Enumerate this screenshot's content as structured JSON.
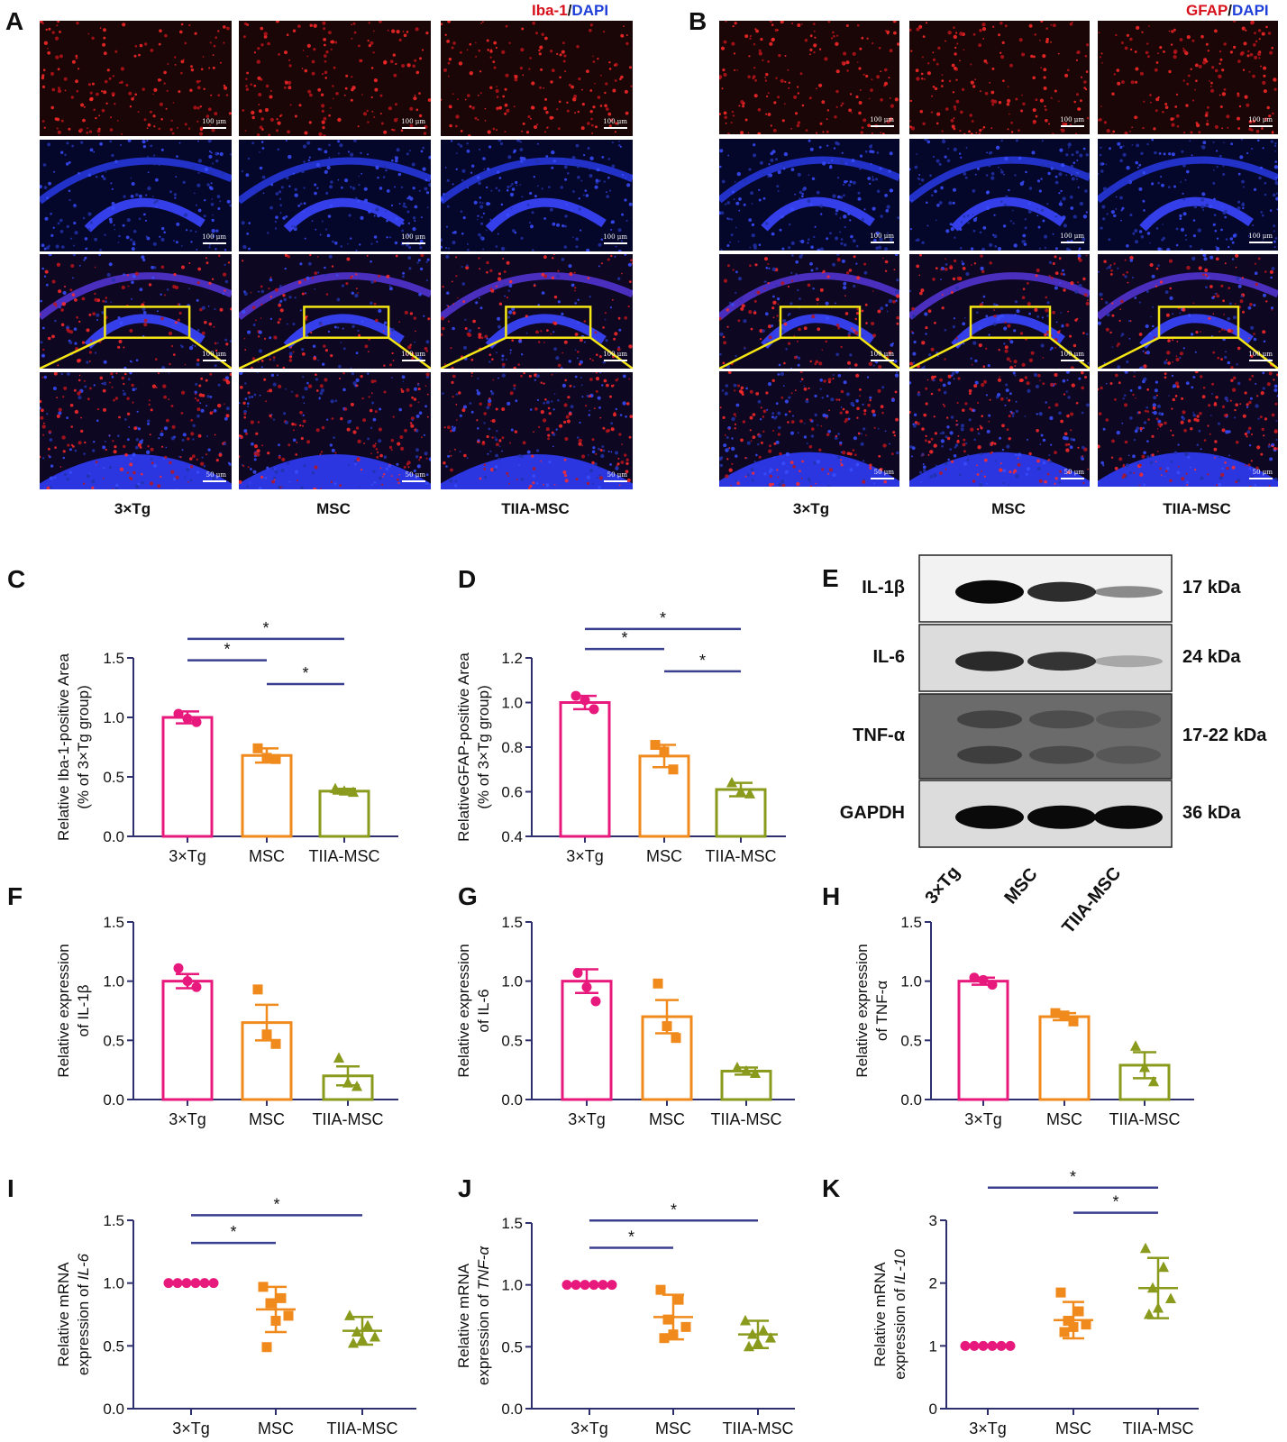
{
  "panel_a": {
    "letter": "A",
    "title_red": "Iba-1",
    "title_sep": "/",
    "title_blue": "DAPI",
    "groups": [
      "3×Tg",
      "MSC",
      "TIIA-MSC"
    ],
    "scale_labels": [
      "100 μm",
      "100 μm",
      "100 μm",
      "50 μm"
    ]
  },
  "panel_b": {
    "letter": "B",
    "title_red": "GFAP",
    "title_sep": "/",
    "title_blue": "DAPI",
    "groups": [
      "3×Tg",
      "MSC",
      "TIIA-MSC"
    ],
    "scale_labels": [
      "100 μm",
      "100 μm",
      "100 μm",
      "50 μm"
    ]
  },
  "panel_e": {
    "letter": "E",
    "bands": [
      {
        "name": "IL-1β",
        "kda": "17 kDa"
      },
      {
        "name": "IL-6",
        "kda": "24 kDa"
      },
      {
        "name": "TNF-α",
        "kda": "17-22 kDa"
      },
      {
        "name": "GAPDH",
        "kda": "36 kDa"
      }
    ],
    "lanes": [
      "3×Tg",
      "MSC",
      "TIIA-MSC"
    ]
  },
  "colors": {
    "tg": "#e8197d",
    "msc": "#f08a1c",
    "tiia": "#8a9a1c",
    "sig": "#3b3f8f"
  },
  "chart_data": [
    {
      "id": "C",
      "letter": "C",
      "type": "bar",
      "categories": [
        "3×Tg",
        "MSC",
        "TIIA-MSC"
      ],
      "ylabel_lines": [
        "Relative Iba-1-positive Area",
        "(% of 3×Tg group)"
      ],
      "ylim": [
        0.0,
        1.5
      ],
      "yticks": [
        "0.0",
        "0.5",
        "1.0",
        "1.5"
      ],
      "ytick_values": [
        0,
        0.5,
        1.0,
        1.5
      ],
      "values": [
        1.0,
        0.68,
        0.38
      ],
      "errors": [
        0.05,
        0.06,
        0.02
      ],
      "points": [
        [
          1.03,
          0.99,
          0.96
        ],
        [
          0.74,
          0.66,
          0.65
        ],
        [
          0.4,
          0.38,
          0.37
        ]
      ],
      "markers": [
        "circle",
        "square",
        "triangle"
      ],
      "significance": [
        {
          "from": 0,
          "to": 1,
          "label": "*",
          "y": 1.48
        },
        {
          "from": 1,
          "to": 2,
          "label": "*",
          "y": 1.28
        },
        {
          "from": 0,
          "to": 2,
          "label": "*",
          "y": 1.66
        }
      ]
    },
    {
      "id": "D",
      "letter": "D",
      "type": "bar",
      "categories": [
        "3×Tg",
        "MSC",
        "TIIA-MSC"
      ],
      "ylabel_lines": [
        "RelativeGFAP-positive Area",
        "(% of 3×Tg group)"
      ],
      "ylim": [
        0.4,
        1.2
      ],
      "yticks": [
        "0.4",
        "0.6",
        "0.8",
        "1.0",
        "1.2"
      ],
      "ytick_values": [
        0.4,
        0.6,
        0.8,
        1.0,
        1.2
      ],
      "values": [
        1.0,
        0.76,
        0.61
      ],
      "errors": [
        0.03,
        0.05,
        0.03
      ],
      "points": [
        [
          1.03,
          1.01,
          0.97
        ],
        [
          0.81,
          0.78,
          0.7
        ],
        [
          0.64,
          0.6,
          0.59
        ]
      ],
      "markers": [
        "circle",
        "square",
        "triangle"
      ],
      "significance": [
        {
          "from": 0,
          "to": 1,
          "label": "*",
          "y": 1.24
        },
        {
          "from": 1,
          "to": 2,
          "label": "*",
          "y": 1.14
        },
        {
          "from": 0,
          "to": 2,
          "label": "*",
          "y": 1.33
        }
      ]
    },
    {
      "id": "F",
      "letter": "F",
      "type": "bar",
      "categories": [
        "3×Tg",
        "MSC",
        "TIIA-MSC"
      ],
      "ylabel_lines": [
        "Relative expression",
        "of IL-1β"
      ],
      "ylim": [
        0.0,
        1.5
      ],
      "yticks": [
        "0.0",
        "0.5",
        "1.0",
        "1.5"
      ],
      "ytick_values": [
        0,
        0.5,
        1.0,
        1.5
      ],
      "values": [
        1.0,
        0.65,
        0.2
      ],
      "errors": [
        0.06,
        0.15,
        0.08
      ],
      "points": [
        [
          1.11,
          1.0,
          0.95
        ],
        [
          0.93,
          0.55,
          0.47
        ],
        [
          0.35,
          0.14,
          0.11
        ]
      ],
      "markers": [
        "circle",
        "square",
        "triangle"
      ],
      "significance": []
    },
    {
      "id": "G",
      "letter": "G",
      "type": "bar",
      "categories": [
        "3×Tg",
        "MSC",
        "TIIA-MSC"
      ],
      "ylabel_lines": [
        "Relative expression",
        "of IL-6"
      ],
      "ylim": [
        0.0,
        1.5
      ],
      "yticks": [
        "0.0",
        "0.5",
        "1.0",
        "1.5"
      ],
      "ytick_values": [
        0,
        0.5,
        1.0,
        1.5
      ],
      "values": [
        1.0,
        0.7,
        0.24
      ],
      "errors": [
        0.1,
        0.14,
        0.03
      ],
      "points": [
        [
          1.07,
          0.95,
          0.83
        ],
        [
          0.98,
          0.62,
          0.52
        ],
        [
          0.27,
          0.24,
          0.22
        ]
      ],
      "markers": [
        "circle",
        "square",
        "triangle"
      ],
      "significance": []
    },
    {
      "id": "H",
      "letter": "H",
      "type": "bar",
      "categories": [
        "3×Tg",
        "MSC",
        "TIIA-MSC"
      ],
      "ylabel_lines": [
        "Relative expression",
        "of TNF-α"
      ],
      "ylim": [
        0.0,
        1.5
      ],
      "yticks": [
        "0.0",
        "0.5",
        "1.0",
        "1.5"
      ],
      "ytick_values": [
        0,
        0.5,
        1.0,
        1.5
      ],
      "values": [
        1.0,
        0.7,
        0.29
      ],
      "errors": [
        0.03,
        0.03,
        0.11
      ],
      "points": [
        [
          1.03,
          1.01,
          0.97
        ],
        [
          0.73,
          0.71,
          0.66
        ],
        [
          0.45,
          0.27,
          0.15
        ]
      ],
      "markers": [
        "circle",
        "square",
        "triangle"
      ],
      "significance": []
    },
    {
      "id": "I",
      "letter": "I",
      "type": "scatter",
      "categories": [
        "3×Tg",
        "MSC",
        "TIIA-MSC"
      ],
      "ylabel_lines": [
        "Relative mRNA",
        "expression of ",
        "IL-6"
      ],
      "ylim": [
        0.0,
        1.5
      ],
      "yticks": [
        "0.0",
        "0.5",
        "1.0",
        "1.5"
      ],
      "ytick_values": [
        0,
        0.5,
        1.0,
        1.5
      ],
      "values": [
        1.0,
        0.79,
        0.62
      ],
      "errors": [
        0.0,
        0.18,
        0.11
      ],
      "points": [
        [
          1.0,
          1.0,
          1.0,
          1.0,
          1.0,
          1.0
        ],
        [
          0.97,
          0.88,
          0.84,
          0.74,
          0.7,
          0.49
        ],
        [
          0.74,
          0.66,
          0.61,
          0.57,
          0.55,
          0.52
        ]
      ],
      "markers": [
        "circle",
        "square",
        "triangle"
      ],
      "significance": [
        {
          "from": 0,
          "to": 1,
          "label": "*",
          "y": 1.32
        },
        {
          "from": 0,
          "to": 2,
          "label": "*",
          "y": 1.54
        }
      ]
    },
    {
      "id": "J",
      "letter": "J",
      "type": "scatter",
      "categories": [
        "3×Tg",
        "MSC",
        "TIIA-MSC"
      ],
      "ylabel_lines": [
        "Relative mRNA",
        "expression of ",
        "TNF-α"
      ],
      "ylim": [
        0.0,
        1.5
      ],
      "yticks": [
        "0.0",
        "0.5",
        "1.0",
        "1.5"
      ],
      "ytick_values": [
        0,
        0.5,
        1.0,
        1.5
      ],
      "values": [
        1.0,
        0.74,
        0.6
      ],
      "errors": [
        0.0,
        0.18,
        0.11
      ],
      "points": [
        [
          1.0,
          1.0,
          1.0,
          1.0,
          1.0,
          1.0
        ],
        [
          0.96,
          0.88,
          0.72,
          0.66,
          0.6,
          0.57
        ],
        [
          0.71,
          0.63,
          0.6,
          0.57,
          0.53,
          0.5
        ]
      ],
      "markers": [
        "circle",
        "square",
        "triangle"
      ],
      "significance": [
        {
          "from": 0,
          "to": 1,
          "label": "*",
          "y": 1.3
        },
        {
          "from": 0,
          "to": 2,
          "label": "*",
          "y": 1.52
        }
      ]
    },
    {
      "id": "K",
      "letter": "K",
      "type": "scatter",
      "categories": [
        "3×Tg",
        "MSC",
        "TIIA-MSC"
      ],
      "ylabel_lines": [
        "Relative mRNA",
        "expression of ",
        "IL-10"
      ],
      "ylim": [
        0,
        3
      ],
      "yticks": [
        "0",
        "1",
        "2",
        "3"
      ],
      "ytick_values": [
        0,
        1,
        2,
        3
      ],
      "values": [
        1.0,
        1.41,
        1.92
      ],
      "errors": [
        0.0,
        0.29,
        0.48
      ],
      "points": [
        [
          1.0,
          1.0,
          1.0,
          1.0,
          1.0,
          1.0
        ],
        [
          1.85,
          1.55,
          1.4,
          1.34,
          1.3,
          1.22
        ],
        [
          2.55,
          2.25,
          1.92,
          1.75,
          1.6,
          1.5
        ]
      ],
      "markers": [
        "circle",
        "square",
        "triangle"
      ],
      "significance": [
        {
          "from": 1,
          "to": 2,
          "label": "*",
          "y": 3.12
        },
        {
          "from": 0,
          "to": 2,
          "label": "*",
          "y": 3.52
        }
      ]
    }
  ]
}
